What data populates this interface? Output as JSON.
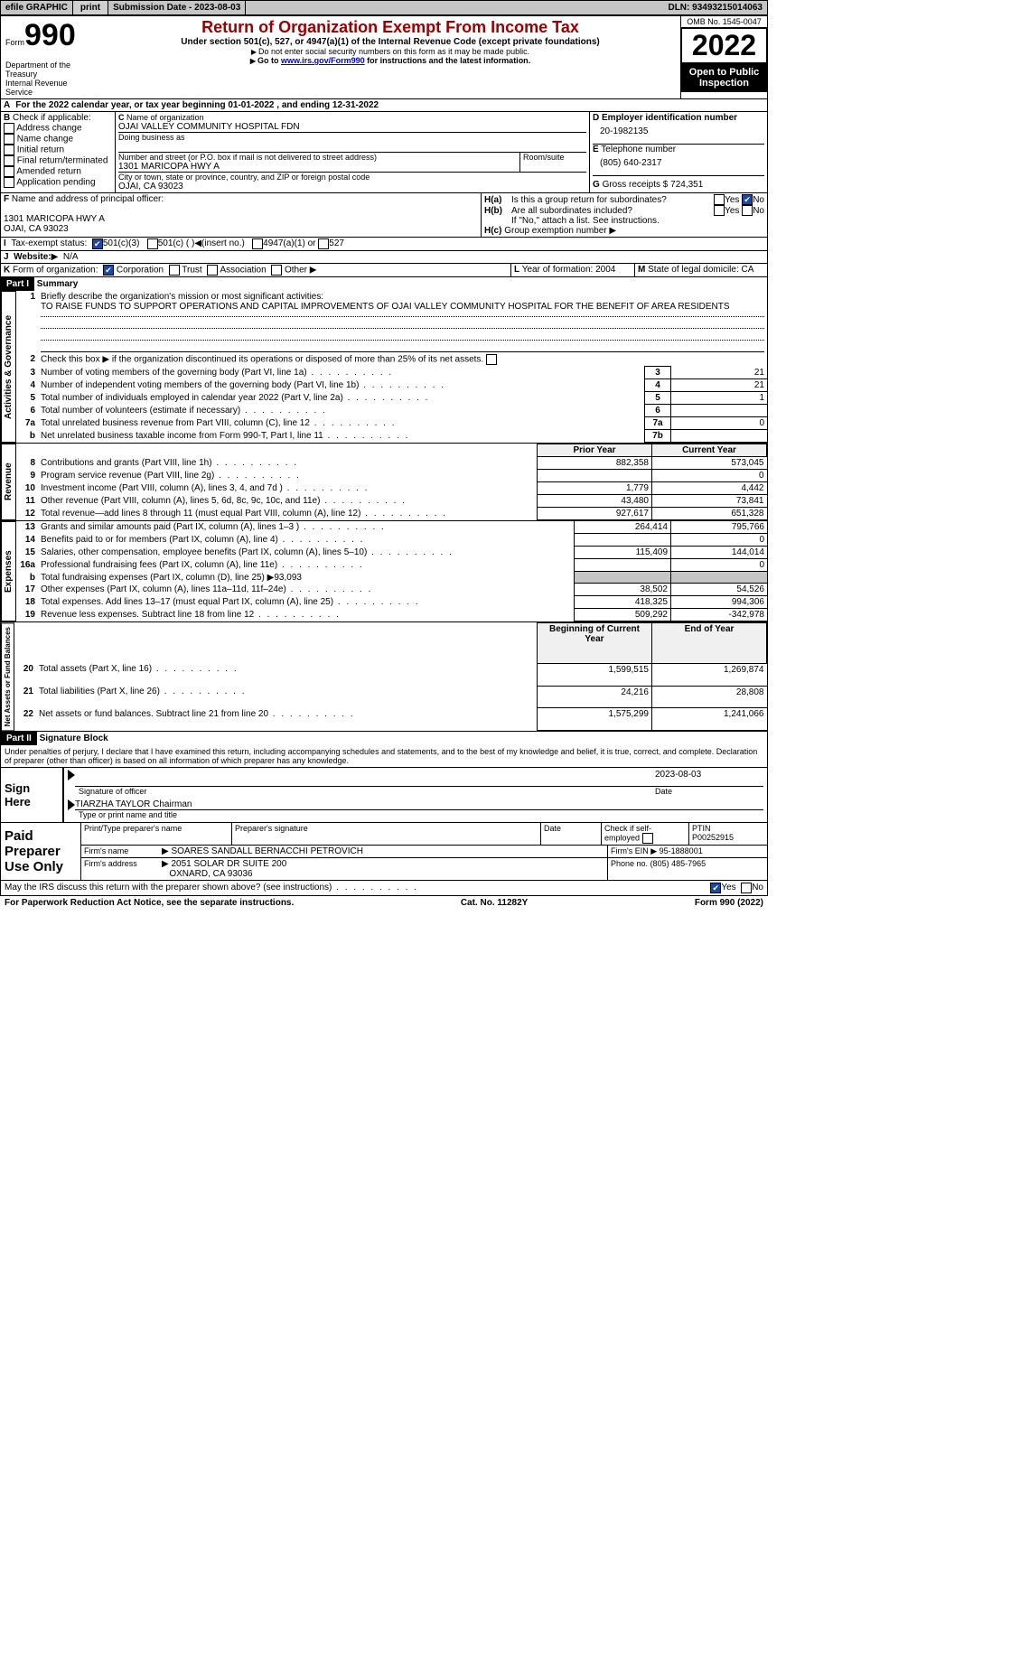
{
  "topbar": {
    "efile_label": "efile GRAPHIC",
    "print_btn": "print",
    "submission_label": "Submission Date - 2023-08-03",
    "dln_label": "DLN: 93493215014063"
  },
  "header": {
    "form_prefix": "Form",
    "form_no": "990",
    "title": "Return of Organization Exempt From Income Tax",
    "subtitle": "Under section 501(c), 527, or 4947(a)(1) of the Internal Revenue Code (except private foundations)",
    "note1": "Do not enter social security numbers on this form as it may be made public.",
    "note2_pre": "Go to ",
    "note2_link": "www.irs.gov/Form990",
    "note2_post": " for instructions and the latest information.",
    "dept": "Department of the Treasury",
    "irs": "Internal Revenue Service",
    "omb": "OMB No. 1545-0047",
    "year": "2022",
    "openpub": "Open to Public Inspection"
  },
  "periodA": {
    "text": "For the 2022 calendar year, or tax year beginning 01-01-2022    , and ending 12-31-2022"
  },
  "B": {
    "label": "B",
    "title": "Check if applicable:",
    "items": [
      "Address change",
      "Name change",
      "Initial return",
      "Final return/terminated",
      "Amended return",
      "Application pending"
    ]
  },
  "C": {
    "label": "C",
    "name_label": "Name of organization",
    "name": "OJAI VALLEY COMMUNITY HOSPITAL FDN",
    "dba_label": "Doing business as",
    "addr_label": "Number and street (or P.O. box if mail is not delivered to street address)",
    "room_label": "Room/suite",
    "addr": "1301 MARICOPA HWY A",
    "city_label": "City or town, state or province, country, and ZIP or foreign postal code",
    "city": "OJAI, CA  93023"
  },
  "D": {
    "label": "D",
    "title": "Employer identification number",
    "value": "20-1982135"
  },
  "E": {
    "label": "E",
    "title": "Telephone number",
    "value": "(805) 640-2317"
  },
  "G": {
    "label": "G",
    "title": "Gross receipts $",
    "value": "724,351"
  },
  "F": {
    "label": "F",
    "title": "Name and address of principal officer:",
    "addr1": "1301 MARICOPA HWY A",
    "addr2": "OJAI, CA  93023"
  },
  "H": {
    "a_label": "H(a)",
    "a_text": "Is this a group return for subordinates?",
    "b_label": "H(b)",
    "b_text": "Are all subordinates included?",
    "b_note": "If \"No,\" attach a list. See instructions.",
    "c_label": "H(c)",
    "c_text": "Group exemption number",
    "yes": "Yes",
    "no": "No",
    "no_checked": true
  },
  "I": {
    "label": "I",
    "title": "Tax-exempt status:",
    "c3": "501(c)(3)",
    "c": "501(c) (  )",
    "insert": "(insert no.)",
    "a1": "4947(a)(1) or",
    "s527": "527",
    "c3_checked": true
  },
  "J": {
    "label": "J",
    "title": "Website:",
    "value": "N/A"
  },
  "K": {
    "label": "K",
    "title": "Form of organization:",
    "corp": "Corporation",
    "trust": "Trust",
    "assoc": "Association",
    "other": "Other",
    "corp_checked": true
  },
  "L": {
    "label": "L",
    "title": "Year of formation:",
    "value": "2004"
  },
  "M": {
    "label": "M",
    "title": "State of legal domicile:",
    "value": "CA"
  },
  "part1": {
    "hdr": "Part I",
    "title": "Summary"
  },
  "summary": {
    "l1_label": "Briefly describe the organization's mission or most significant activities:",
    "l1_text": "TO RAISE FUNDS TO SUPPORT OPERATIONS AND CAPITAL IMPROVEMENTS OF OJAI VALLEY COMMUNITY HOSPITAL FOR THE BENEFIT OF AREA RESIDENTS",
    "l2": "Check this box ▶        if the organization discontinued its operations or disposed of more than 25% of its net assets.",
    "prior_hdr": "Prior Year",
    "current_hdr": "Current Year",
    "boy_hdr": "Beginning of Current Year",
    "eoy_hdr": "End of Year",
    "rows_ag": [
      {
        "n": "3",
        "t": "Number of voting members of the governing body (Part VI, line 1a)",
        "box": "3",
        "v": "21"
      },
      {
        "n": "4",
        "t": "Number of independent voting members of the governing body (Part VI, line 1b)",
        "box": "4",
        "v": "21"
      },
      {
        "n": "5",
        "t": "Total number of individuals employed in calendar year 2022 (Part V, line 2a)",
        "box": "5",
        "v": "1"
      },
      {
        "n": "6",
        "t": "Total number of volunteers (estimate if necessary)",
        "box": "6",
        "v": ""
      },
      {
        "n": "7a",
        "t": "Total unrelated business revenue from Part VIII, column (C), line 12",
        "box": "7a",
        "v": "0"
      },
      {
        "n": "b",
        "t": "Net unrelated business taxable income from Form 990-T, Part I, line 11",
        "box": "7b",
        "v": ""
      }
    ],
    "rows_rev": [
      {
        "n": "8",
        "t": "Contributions and grants (Part VIII, line 1h)",
        "p": "882,358",
        "c": "573,045"
      },
      {
        "n": "9",
        "t": "Program service revenue (Part VIII, line 2g)",
        "p": "",
        "c": "0"
      },
      {
        "n": "10",
        "t": "Investment income (Part VIII, column (A), lines 3, 4, and 7d )",
        "p": "1,779",
        "c": "4,442"
      },
      {
        "n": "11",
        "t": "Other revenue (Part VIII, column (A), lines 5, 6d, 8c, 9c, 10c, and 11e)",
        "p": "43,480",
        "c": "73,841"
      },
      {
        "n": "12",
        "t": "Total revenue—add lines 8 through 11 (must equal Part VIII, column (A), line 12)",
        "p": "927,617",
        "c": "651,328"
      }
    ],
    "rows_exp": [
      {
        "n": "13",
        "t": "Grants and similar amounts paid (Part IX, column (A), lines 1–3 )",
        "p": "264,414",
        "c": "795,766"
      },
      {
        "n": "14",
        "t": "Benefits paid to or for members (Part IX, column (A), line 4)",
        "p": "",
        "c": "0"
      },
      {
        "n": "15",
        "t": "Salaries, other compensation, employee benefits (Part IX, column (A), lines 5–10)",
        "p": "115,409",
        "c": "144,014"
      },
      {
        "n": "16a",
        "t": "Professional fundraising fees (Part IX, column (A), line 11e)",
        "p": "",
        "c": "0"
      },
      {
        "n": "b",
        "t": "Total fundraising expenses (Part IX, column (D), line 25) ▶93,093",
        "p": null,
        "c": null,
        "shade": true
      },
      {
        "n": "17",
        "t": "Other expenses (Part IX, column (A), lines 11a–11d, 11f–24e)",
        "p": "38,502",
        "c": "54,526"
      },
      {
        "n": "18",
        "t": "Total expenses. Add lines 13–17 (must equal Part IX, column (A), line 25)",
        "p": "418,325",
        "c": "994,306"
      },
      {
        "n": "19",
        "t": "Revenue less expenses. Subtract line 18 from line 12",
        "p": "509,292",
        "c": "-342,978"
      }
    ],
    "rows_net": [
      {
        "n": "20",
        "t": "Total assets (Part X, line 16)",
        "p": "1,599,515",
        "c": "1,269,874"
      },
      {
        "n": "21",
        "t": "Total liabilities (Part X, line 26)",
        "p": "24,216",
        "c": "28,808"
      },
      {
        "n": "22",
        "t": "Net assets or fund balances. Subtract line 21 from line 20",
        "p": "1,575,299",
        "c": "1,241,066"
      }
    ],
    "side_ag": "Activities & Governance",
    "side_rev": "Revenue",
    "side_exp": "Expenses",
    "side_net": "Net Assets or Fund Balances"
  },
  "part2": {
    "hdr": "Part II",
    "title": "Signature Block",
    "penalties": "Under penalties of perjury, I declare that I have examined this return, including accompanying schedules and statements, and to the best of my knowledge and belief, it is true, correct, and complete. Declaration of preparer (other than officer) is based on all information of which preparer has any knowledge."
  },
  "sign": {
    "here": "Sign Here",
    "sig_label": "Signature of officer",
    "date_label": "Date",
    "date_val": "2023-08-03",
    "name": "TIARZHA TAYLOR  Chairman",
    "name_label": "Type or print name and title"
  },
  "paid": {
    "title": "Paid Preparer Use Only",
    "prep_name_label": "Print/Type preparer's name",
    "prep_sig_label": "Preparer's signature",
    "date_label": "Date",
    "check_label": "Check         if self-employed",
    "ptin_label": "PTIN",
    "ptin": "P00252915",
    "firm_name_label": "Firm's name",
    "firm_name": "SOARES SANDALL BERNACCHI PETROVICH",
    "firm_ein_label": "Firm's EIN",
    "firm_ein": "95-1888001",
    "firm_addr_label": "Firm's address",
    "firm_addr1": "2051 SOLAR DR SUITE 200",
    "firm_addr2": "OXNARD, CA  93036",
    "phone_label": "Phone no.",
    "phone": "(805) 485-7965"
  },
  "discuss": {
    "text": "May the IRS discuss this return with the preparer shown above? (see instructions)",
    "yes": "Yes",
    "no": "No",
    "yes_checked": true
  },
  "footer": {
    "left": "For Paperwork Reduction Act Notice, see the separate instructions.",
    "mid": "Cat. No. 11282Y",
    "right": "Form 990 (2022)"
  }
}
